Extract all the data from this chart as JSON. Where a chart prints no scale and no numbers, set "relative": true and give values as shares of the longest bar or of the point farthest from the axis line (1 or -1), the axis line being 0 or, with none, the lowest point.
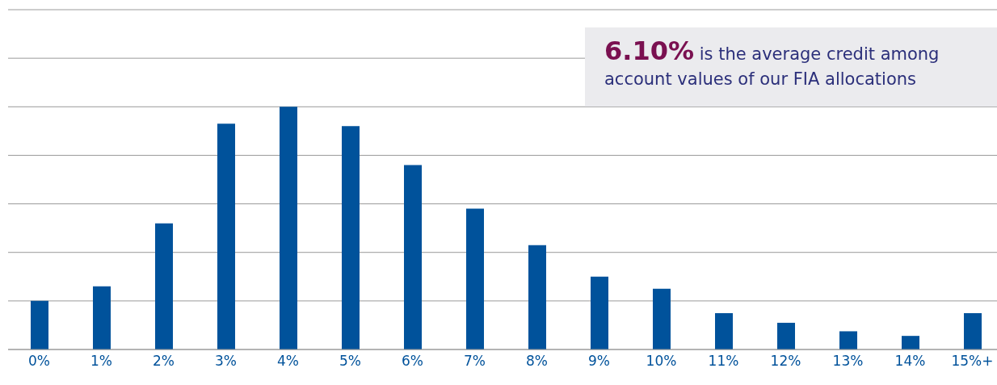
{
  "chart_data": {
    "type": "bar",
    "relative": true,
    "grid": "y",
    "color": "#00529b",
    "categories": [
      "0%",
      "1%",
      "2%",
      "3%",
      "4%",
      "5%",
      "6%",
      "7%",
      "8%",
      "9%",
      "10%",
      "11%",
      "12%",
      "13%",
      "14%",
      "15%+"
    ],
    "values": [
      0.2,
      0.26,
      0.52,
      0.93,
      1,
      0.92,
      0.76,
      0.58,
      0.43,
      0.3,
      0.25,
      0.15,
      0.11,
      0.075,
      0.056,
      0.15
    ],
    "annotations": [
      "6.10% is the average credit among account values of our FIA allocations"
    ]
  }
}
